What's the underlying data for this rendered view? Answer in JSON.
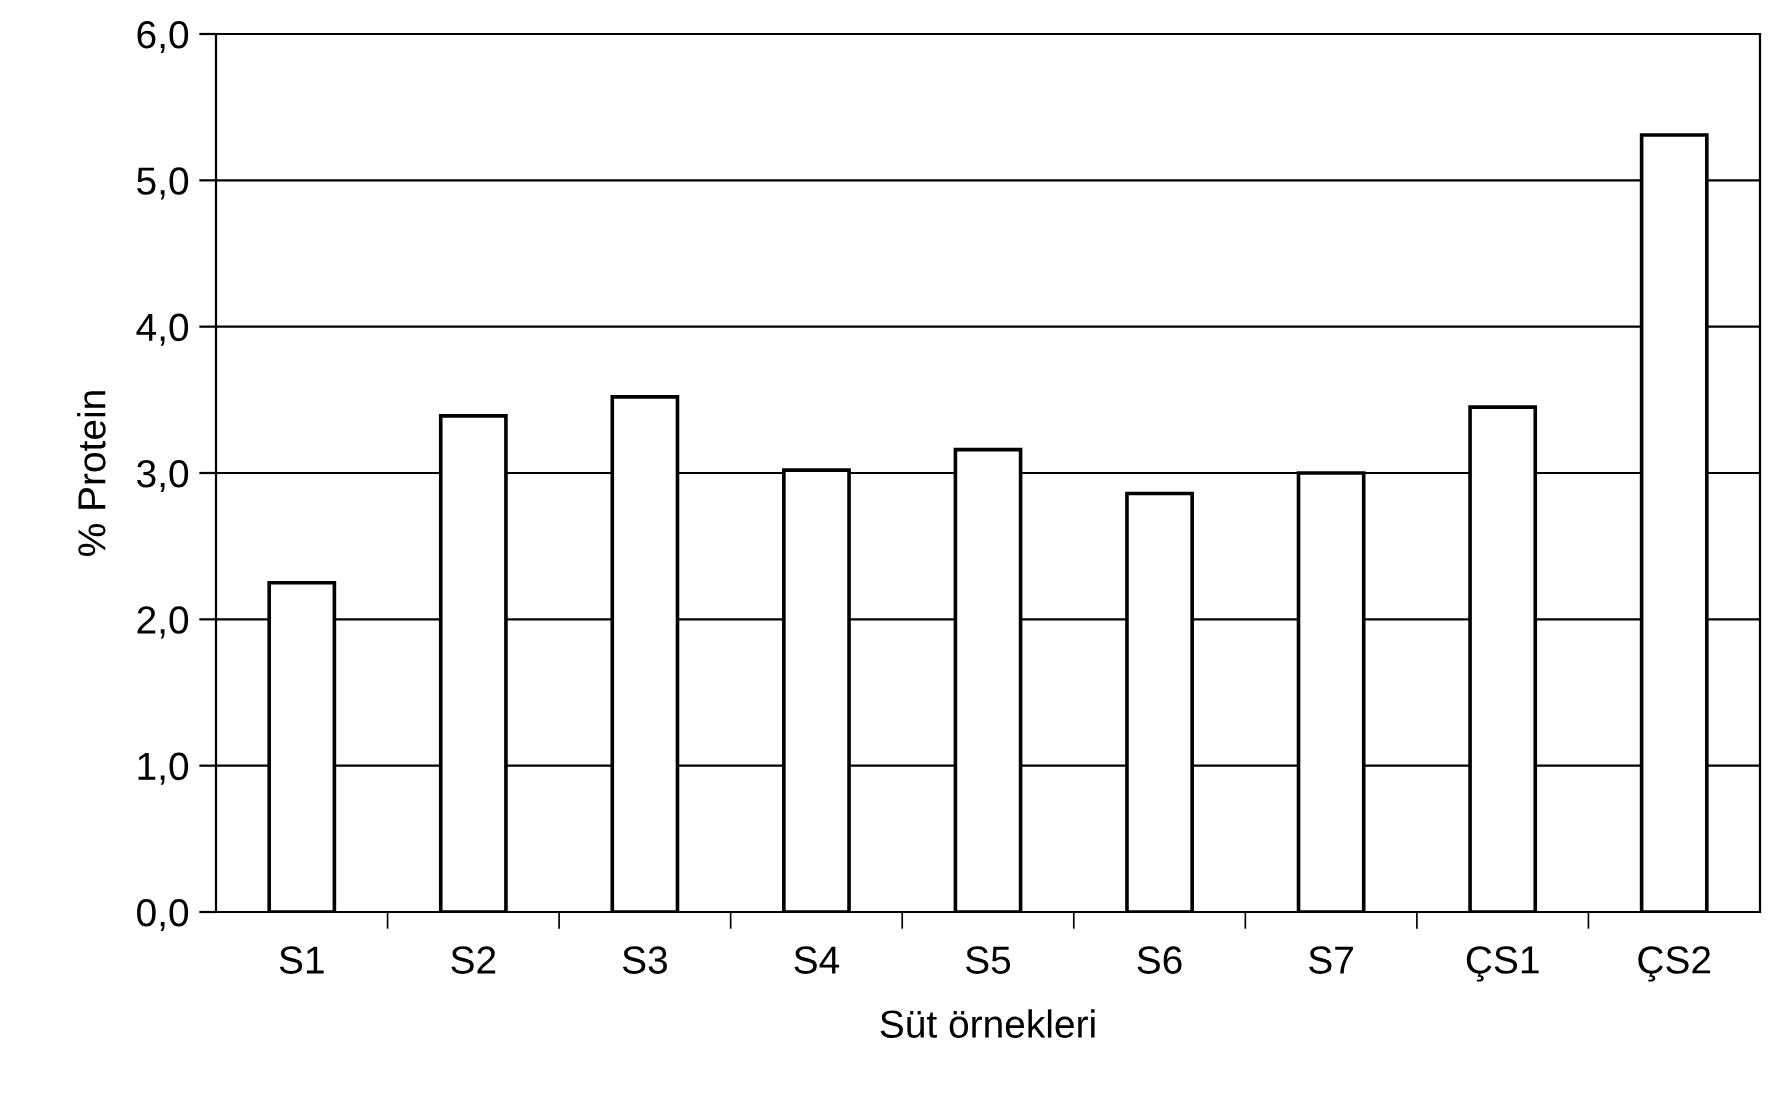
{
  "chart_data": {
    "type": "bar",
    "xlabel": "Süt örnekleri",
    "ylabel": "% Protein",
    "categories": [
      "S1",
      "S2",
      "S3",
      "S4",
      "S5",
      "S6",
      "S7",
      "ÇS1",
      "ÇS2"
    ],
    "values": [
      2.25,
      3.39,
      3.52,
      3.02,
      3.16,
      2.86,
      3.0,
      3.45,
      5.31
    ],
    "color": "#ffffff",
    "ylim": [
      0,
      6
    ],
    "yticks": [
      {
        "value": 0,
        "label": "0,0"
      },
      {
        "value": 1,
        "label": "1,0"
      },
      {
        "value": 2,
        "label": "2,0"
      },
      {
        "value": 3,
        "label": "3,0"
      },
      {
        "value": 4,
        "label": "4,0"
      },
      {
        "value": 5,
        "label": "5,0"
      },
      {
        "value": 6,
        "label": "6,0"
      }
    ],
    "grid": "y"
  }
}
